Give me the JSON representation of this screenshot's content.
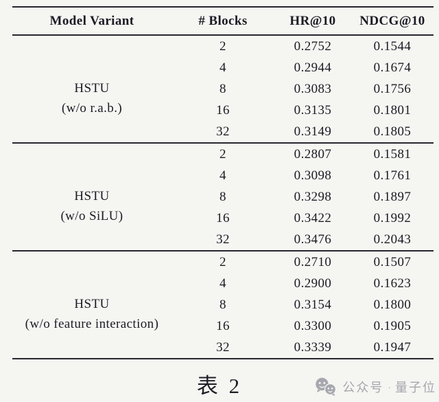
{
  "table": {
    "columns": [
      "Model Variant",
      "# Blocks",
      "HR@10",
      "NDCG@10"
    ],
    "groups": [
      {
        "model": "HSTU",
        "variant": "(w/o r.a.b.)",
        "rows": [
          {
            "blocks": "2",
            "hr": "0.2752",
            "ndcg": "0.1544"
          },
          {
            "blocks": "4",
            "hr": "0.2944",
            "ndcg": "0.1674"
          },
          {
            "blocks": "8",
            "hr": "0.3083",
            "ndcg": "0.1756"
          },
          {
            "blocks": "16",
            "hr": "0.3135",
            "ndcg": "0.1801"
          },
          {
            "blocks": "32",
            "hr": "0.3149",
            "ndcg": "0.1805"
          }
        ]
      },
      {
        "model": "HSTU",
        "variant": "(w/o SiLU)",
        "rows": [
          {
            "blocks": "2",
            "hr": "0.2807",
            "ndcg": "0.1581"
          },
          {
            "blocks": "4",
            "hr": "0.3098",
            "ndcg": "0.1761"
          },
          {
            "blocks": "8",
            "hr": "0.3298",
            "ndcg": "0.1897"
          },
          {
            "blocks": "16",
            "hr": "0.3422",
            "ndcg": "0.1992"
          },
          {
            "blocks": "32",
            "hr": "0.3476",
            "ndcg": "0.2043"
          }
        ]
      },
      {
        "model": "HSTU",
        "variant": "(w/o feature interaction)",
        "rows": [
          {
            "blocks": "2",
            "hr": "0.2710",
            "ndcg": "0.1507"
          },
          {
            "blocks": "4",
            "hr": "0.2900",
            "ndcg": "0.1623"
          },
          {
            "blocks": "8",
            "hr": "0.3154",
            "ndcg": "0.1800"
          },
          {
            "blocks": "16",
            "hr": "0.3300",
            "ndcg": "0.1905"
          },
          {
            "blocks": "32",
            "hr": "0.3339",
            "ndcg": "0.1947"
          }
        ]
      }
    ]
  },
  "caption": "表 2",
  "watermark": {
    "icon": "wechat-icon",
    "label": "公众号",
    "separator": "·",
    "brand": "量子位",
    "color": "#a7a7af"
  },
  "colors": {
    "background": "#f5f5f2",
    "text": "#1b1b24",
    "rule": "#26262e"
  }
}
